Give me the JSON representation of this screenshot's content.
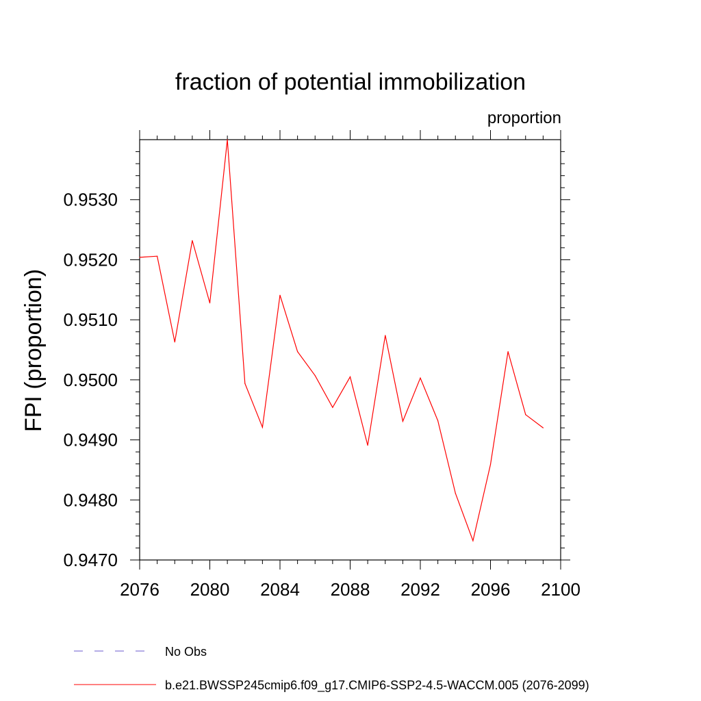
{
  "chart_data": {
    "type": "line",
    "title": "fraction of potential immobilization",
    "units_label": "proportion",
    "ylabel": "FPI  (proportion)",
    "xlabel": "",
    "xlim": [
      2076,
      2100
    ],
    "ylim": [
      0.947,
      0.954
    ],
    "x_ticks": [
      2076,
      2080,
      2084,
      2088,
      2092,
      2096,
      2100
    ],
    "y_ticks": [
      0.947,
      0.948,
      0.949,
      0.95,
      0.951,
      0.952,
      0.953
    ],
    "x_tick_labels": [
      "2076",
      "2080",
      "2084",
      "2088",
      "2092",
      "2096",
      "2100"
    ],
    "y_tick_labels": [
      "0.9470",
      "0.9480",
      "0.9490",
      "0.9500",
      "0.9510",
      "0.9520",
      "0.9530"
    ],
    "grid": false,
    "series": [
      {
        "name": "b.e21.BWSSP245cmip6.f09_g17.CMIP6-SSP2-4.5-WACCM.005 (2076-2099)",
        "color": "#ff0000",
        "style": "solid",
        "x": [
          2076,
          2077,
          2078,
          2079,
          2080,
          2081,
          2082,
          2083,
          2084,
          2085,
          2086,
          2087,
          2088,
          2089,
          2090,
          2091,
          2092,
          2093,
          2094,
          2095,
          2096,
          2097,
          2098,
          2099
        ],
        "y": [
          0.95204,
          0.95206,
          0.95063,
          0.95232,
          0.95128,
          0.954,
          0.94994,
          0.94921,
          0.95141,
          0.95047,
          0.95007,
          0.94954,
          0.95005,
          0.94891,
          0.95074,
          0.94931,
          0.95003,
          0.94932,
          0.94811,
          0.94732,
          0.94859,
          0.95047,
          0.94942,
          0.9492
        ]
      }
    ],
    "legend": [
      {
        "label": "No Obs",
        "color": "#6a5acd",
        "style": "dashed"
      },
      {
        "label": "b.e21.BWSSP245cmip6.f09_g17.CMIP6-SSP2-4.5-WACCM.005 (2076-2099)",
        "color": "#ff0000",
        "style": "solid"
      }
    ]
  }
}
